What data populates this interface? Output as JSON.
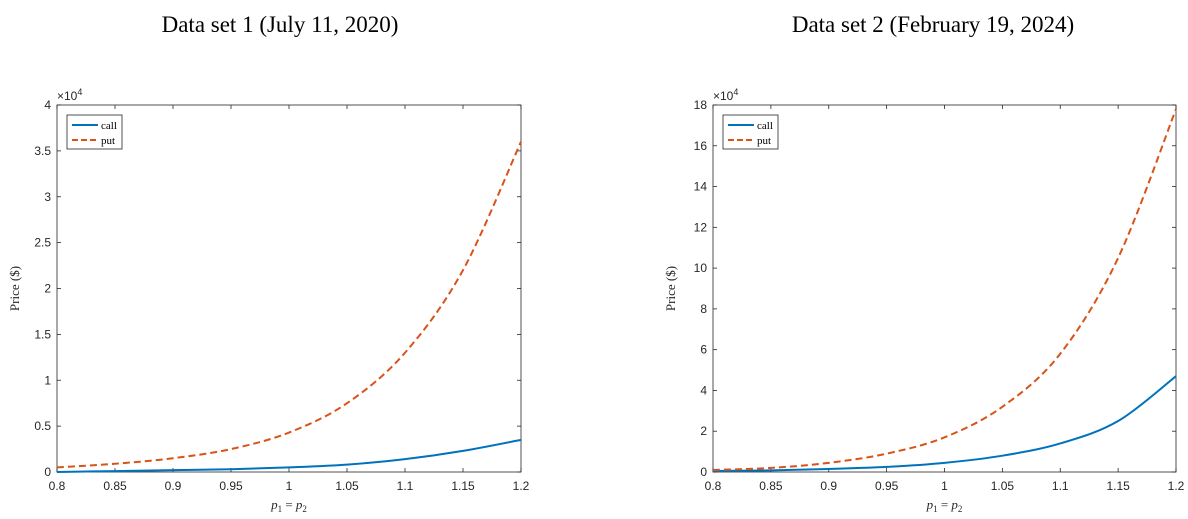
{
  "colors": {
    "call": "#0072BD",
    "put": "#D95319",
    "axis": "#262626"
  },
  "chart_data": [
    {
      "type": "line",
      "title": "Data set 1 (July 11, 2020)",
      "xlabel": "p1 = p2",
      "ylabel": "Price ($)",
      "y_exponent": "×10^4",
      "x_tick_labels": [
        "0.8",
        "0.85",
        "0.9",
        "0.95",
        "1",
        "1.05",
        "1.1",
        "1.15",
        "1.2"
      ],
      "x_ticks": [
        0.8,
        0.85,
        0.9,
        0.95,
        1.0,
        1.05,
        1.1,
        1.15,
        1.2
      ],
      "y_tick_labels": [
        "0",
        "0.5",
        "1",
        "1.5",
        "2",
        "2.5",
        "3",
        "3.5",
        "4"
      ],
      "y_ticks": [
        0,
        0.5,
        1,
        1.5,
        2,
        2.5,
        3,
        3.5,
        4
      ],
      "xlim": [
        0.8,
        1.2
      ],
      "ylim": [
        0,
        4
      ],
      "legend_position": "top-left",
      "x": [
        0.8,
        0.85,
        0.9,
        0.95,
        1.0,
        1.05,
        1.1,
        1.15,
        1.2
      ],
      "series": [
        {
          "name": "call",
          "style": "solid",
          "values": [
            0.0,
            0.01,
            0.02,
            0.03,
            0.05,
            0.08,
            0.14,
            0.23,
            0.35
          ]
        },
        {
          "name": "put",
          "style": "dashed",
          "values": [
            0.05,
            0.09,
            0.15,
            0.25,
            0.43,
            0.75,
            1.3,
            2.2,
            3.6
          ]
        }
      ]
    },
    {
      "type": "line",
      "title": "Data set 2 (February 19, 2024)",
      "xlabel": "p1 = p2",
      "ylabel": "Price ($)",
      "y_exponent": "×10^4",
      "x_tick_labels": [
        "0.8",
        "0.85",
        "0.9",
        "0.95",
        "1",
        "1.05",
        "1.1",
        "1.15",
        "1.2"
      ],
      "x_ticks": [
        0.8,
        0.85,
        0.9,
        0.95,
        1.0,
        1.05,
        1.1,
        1.15,
        1.2
      ],
      "y_tick_labels": [
        "0",
        "2",
        "4",
        "6",
        "8",
        "10",
        "12",
        "14",
        "16",
        "18"
      ],
      "y_ticks": [
        0,
        2,
        4,
        6,
        8,
        10,
        12,
        14,
        16,
        18
      ],
      "xlim": [
        0.8,
        1.2
      ],
      "ylim": [
        0,
        18
      ],
      "legend_position": "top-left",
      "x": [
        0.8,
        0.85,
        0.9,
        0.95,
        1.0,
        1.05,
        1.1,
        1.15,
        1.2
      ],
      "series": [
        {
          "name": "call",
          "style": "solid",
          "values": [
            0.05,
            0.08,
            0.15,
            0.25,
            0.45,
            0.8,
            1.4,
            2.5,
            4.7
          ]
        },
        {
          "name": "put",
          "style": "dashed",
          "values": [
            0.1,
            0.2,
            0.45,
            0.9,
            1.7,
            3.2,
            5.8,
            10.5,
            17.8
          ]
        }
      ]
    }
  ]
}
